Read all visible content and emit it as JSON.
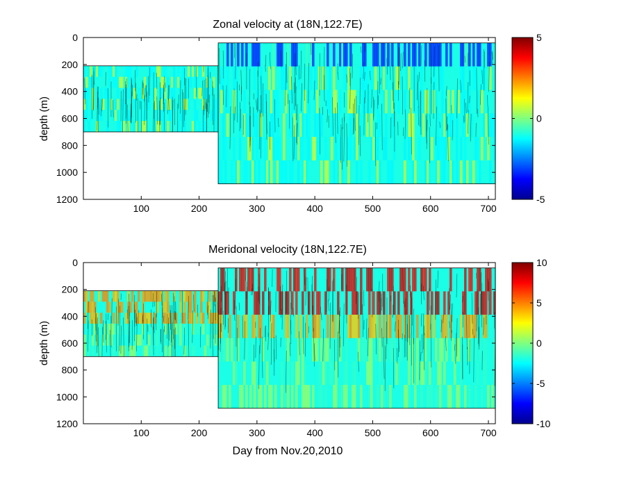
{
  "chart_data": [
    {
      "type": "heatmap",
      "title": "Zonal velocity at (18N,122.7E)",
      "xlabel": "",
      "ylabel": "depth (m)",
      "xlim": [
        0,
        712
      ],
      "ylim": [
        1200,
        0
      ],
      "x_ticks": [
        100,
        200,
        300,
        400,
        500,
        600,
        700
      ],
      "y_ticks": [
        0,
        200,
        400,
        600,
        800,
        1000,
        1200
      ],
      "colorbar": {
        "min": -5,
        "max": 5,
        "ticks": [
          5,
          0,
          -5
        ],
        "colormap": "jet"
      },
      "field": {
        "segment1": {
          "day_range": [
            0,
            233
          ],
          "depth_range": [
            210,
            700
          ],
          "typical_value": -1.0
        },
        "segment2": {
          "day_range": [
            233,
            712
          ],
          "depth_range": [
            40,
            1085
          ],
          "typical_value": -1.0
        }
      }
    },
    {
      "type": "heatmap",
      "title": "Meridonal velocity (18N,122.7E)",
      "xlabel": "Day from Nov.20,2010",
      "ylabel": "depth (m)",
      "xlim": [
        0,
        712
      ],
      "ylim": [
        1200,
        0
      ],
      "x_ticks": [
        100,
        200,
        300,
        400,
        500,
        600,
        700
      ],
      "y_ticks": [
        0,
        200,
        400,
        600,
        800,
        1000,
        1200
      ],
      "colorbar": {
        "min": -10,
        "max": 10,
        "ticks": [
          10,
          5,
          0,
          -5,
          -10
        ],
        "colormap": "jet"
      },
      "field": {
        "segment1": {
          "day_range": [
            0,
            233
          ],
          "depth_range": [
            210,
            700
          ],
          "typical_value": -2.0
        },
        "segment2": {
          "day_range": [
            233,
            712
          ],
          "depth_range": [
            40,
            1085
          ],
          "typical_value": -2.0
        }
      }
    }
  ]
}
